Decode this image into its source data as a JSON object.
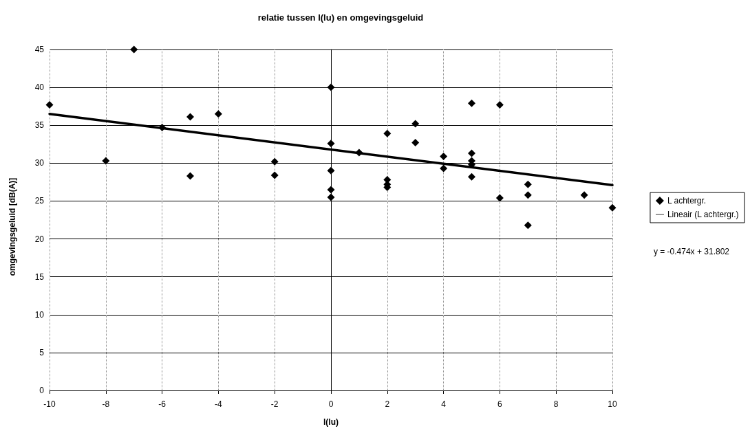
{
  "chart_data": {
    "type": "scatter",
    "title": "relatie tussen l(lu) en omgevingsgeluid",
    "xlabel": "l(lu)",
    "ylabel": "omgevingsgeluid [dB(A)]",
    "xlim": [
      -10,
      10
    ],
    "xticks": [
      -10,
      -8,
      -6,
      -4,
      -2,
      0,
      2,
      4,
      6,
      8,
      10
    ],
    "ylim": [
      0,
      45
    ],
    "yticks": [
      0,
      5,
      10,
      15,
      20,
      25,
      30,
      35,
      40,
      45
    ],
    "grid": true,
    "legend": "right",
    "marker": "diamond",
    "series": [
      {
        "name": "L achtergr.",
        "color": "#000000",
        "x": [
          -10,
          -8,
          -7,
          -6,
          -5,
          -5,
          -4,
          -2,
          -2,
          0,
          0,
          0,
          0,
          0,
          1,
          2,
          2,
          2,
          2,
          3,
          3,
          4,
          4,
          5,
          5,
          5,
          5,
          5,
          6,
          6,
          7,
          7,
          7,
          9,
          10
        ],
        "values": [
          37.7,
          30.3,
          45,
          34.7,
          36.1,
          28.3,
          36.5,
          30.2,
          28.4,
          40,
          32.6,
          29,
          26.5,
          25.5,
          31.4,
          33.9,
          27.8,
          27.2,
          26.8,
          35.2,
          32.7,
          30.9,
          29.3,
          37.9,
          31.3,
          30.3,
          29.8,
          28.2,
          37.7,
          25.4,
          27.2,
          25.8,
          21.8,
          25.8,
          24.1
        ]
      },
      {
        "name": "Lineair (L achtergr.)",
        "type": "line",
        "color": "#000000",
        "line_style": "solid",
        "marker": "none",
        "x": [
          -10,
          10
        ],
        "values": [
          36.5,
          27.1
        ]
      }
    ],
    "annotations": [
      "y = -0.474x + 31.802"
    ]
  }
}
